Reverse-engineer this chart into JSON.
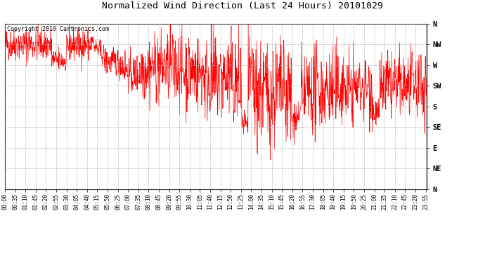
{
  "title": "Normalized Wind Direction (Last 24 Hours) 20101029",
  "copyright_text": "Copyright 2010 Cartronics.com",
  "line_color": "#ff0000",
  "bg_color": "#ffffff",
  "plot_bg_color": "#ffffff",
  "grid_color": "#aaaaaa",
  "ytick_labels": [
    "N",
    "NW",
    "W",
    "SW",
    "S",
    "SE",
    "E",
    "NE",
    "N"
  ],
  "ytick_values": [
    360,
    315,
    270,
    225,
    180,
    135,
    90,
    45,
    0
  ],
  "ylim_low": 0,
  "ylim_high": 360,
  "total_minutes": 1440,
  "xtick_step": 35,
  "title_fontsize": 9.5,
  "tick_fontsize": 5.5,
  "copyright_fontsize": 6.0,
  "line_width": 0.5,
  "ytick_fontsize": 7.5
}
